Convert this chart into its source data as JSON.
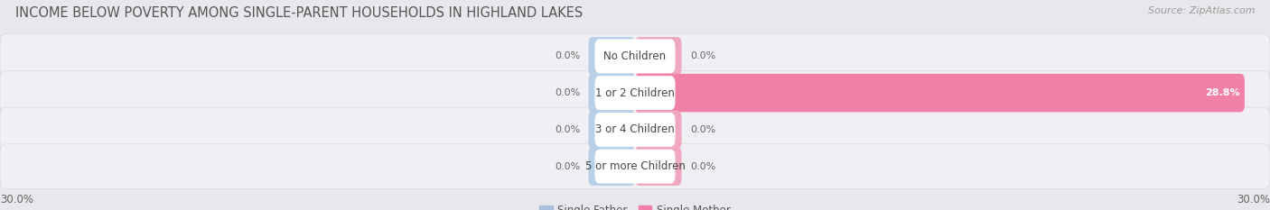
{
  "title": "INCOME BELOW POVERTY AMONG SINGLE-PARENT HOUSEHOLDS IN HIGHLAND LAKES",
  "source": "Source: ZipAtlas.com",
  "categories": [
    "No Children",
    "1 or 2 Children",
    "3 or 4 Children",
    "5 or more Children"
  ],
  "single_father": [
    0.0,
    0.0,
    0.0,
    0.0
  ],
  "single_mother": [
    0.0,
    28.8,
    0.0,
    0.0
  ],
  "max_val": 30.0,
  "color_father": "#a8c0dc",
  "color_mother": "#f080a8",
  "color_father_stub": "#b8d0e8",
  "color_mother_stub": "#f0a8c0",
  "background_color": "#e8e8ec",
  "row_bg_color": "#f0f0f4",
  "title_fontsize": 10.5,
  "source_fontsize": 8,
  "label_fontsize": 8.5,
  "value_fontsize": 8,
  "tick_fontsize": 8.5,
  "legend_fontsize": 8.5
}
